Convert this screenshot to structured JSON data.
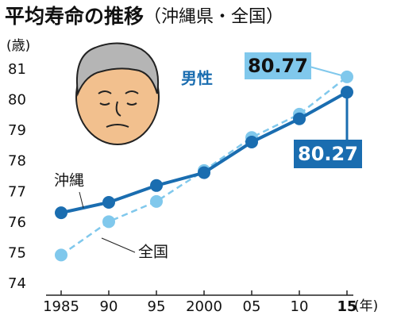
{
  "chart_data": {
    "type": "line",
    "title": "平均寿命の推移",
    "subtitle": "（沖縄県・全国）",
    "y_label": "(歳)",
    "x_label": "(年)",
    "annotation": "男性",
    "x": [
      1985,
      1990,
      1995,
      2000,
      2005,
      2010,
      2015
    ],
    "xlim": [
      1985,
      2015
    ],
    "xticks": [
      1985,
      {
        "value": 1990,
        "label": "90"
      },
      {
        "value": 1995,
        "label": "95"
      },
      2000,
      {
        "value": 2005,
        "label": "05"
      },
      {
        "value": 2010,
        "label": "10"
      },
      {
        "value": 2015,
        "label": "15"
      }
    ],
    "ylim": [
      74,
      81
    ],
    "yticks": [
      74,
      75,
      76,
      77,
      78,
      79,
      80,
      81
    ],
    "series": [
      {
        "name": "沖縄",
        "color": "#1a6db0",
        "dashed": false,
        "values": [
          76.33,
          76.67,
          77.22,
          77.64,
          78.64,
          79.4,
          80.27
        ]
      },
      {
        "name": "全国",
        "color": "#80c8ec",
        "dashed": true,
        "values": [
          74.95,
          76.04,
          76.7,
          77.71,
          78.79,
          79.55,
          80.77
        ]
      }
    ]
  }
}
